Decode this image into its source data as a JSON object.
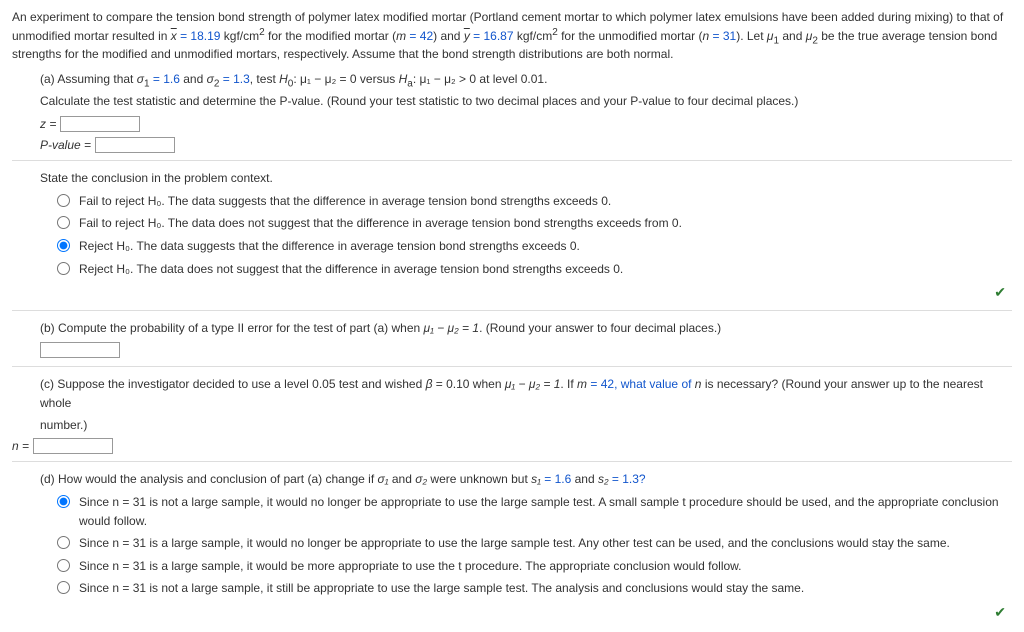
{
  "intro": {
    "line1a": "An experiment to compare the tension bond strength of polymer latex modified mortar (Portland cement mortar to which polymer latex emulsions have been added during mixing) to that of",
    "line2a": "unmodified mortar resulted in ",
    "xbar_lhs": "x",
    "xbar_val": " = 18.19",
    "units1": " kgf/cm",
    "sq": "2",
    "for_mod": " for the modified mortar (",
    "m_eq": "m",
    "m_val": " = 42",
    "and_ybar": ") and ",
    "ybar_lhs": "y",
    "ybar_val": " = 16.87",
    "for_unmod": " for the unmodified mortar (",
    "n_eq": "n",
    "n_val": " = 31",
    "let": "). Let ",
    "mu1": "μ",
    "one": "1",
    "and": " and ",
    "mu2": "μ",
    "two": "2",
    "tail": " be the true average tension bond",
    "line3": "strengths for the modified and unmodified mortars, respectively. Assume that the bond strength distributions are both normal."
  },
  "a": {
    "lead": "(a) Assuming that ",
    "sig1": "σ",
    "sig1v": " = 1.6",
    "and": " and ",
    "sig2": "σ",
    "sig2v": " = 1.3",
    "test": ", test ",
    "H0": "H",
    "H0s": "0",
    "h0body": ": μ₁ − μ₂ = 0 versus ",
    "Ha": "H",
    "Has": "a",
    "habody": ": μ₁ − μ₂ > 0 at level 0.01.",
    "calc": "Calculate the test statistic and determine the P-value. (Round your test statistic to two decimal places and your P-value to four decimal places.)",
    "z_lbl": "z =",
    "p_lbl": "P-value ="
  },
  "conclusion": {
    "title": "State the conclusion in the problem context.",
    "opts": [
      "Fail to reject H₀. The data suggests that the difference in average tension bond strengths exceeds 0.",
      "Fail to reject H₀. The data does not suggest that the difference in average tension bond strengths exceeds from 0.",
      "Reject H₀. The data suggests that the difference in average tension bond strengths exceeds 0.",
      "Reject H₀. The data does not suggest that the difference in average tension bond strengths exceeds 0."
    ],
    "selected": 2
  },
  "b": {
    "text_a": "(b) Compute the probability of a type II error for the test of part (a) when ",
    "text_b": "μ₁ − μ₂ = 1",
    "text_c": ". (Round your answer to four decimal places.)"
  },
  "c": {
    "text_a": "(c) Suppose the investigator decided to use a level 0.05 test and wished ",
    "beta": "β",
    "text_b": " = 0.10 when ",
    "text_c": "μ₁ − μ₂ = 1",
    "text_d": ". If ",
    "m": "m",
    "text_e": " = 42, what value of ",
    "n": "n",
    "text_f": " is necessary? (Round your answer up to the nearest whole",
    "text_g": "number.)",
    "n_lbl": "n ="
  },
  "d": {
    "text_a": "(d) How would the analysis and conclusion of part (a) change if ",
    "s1": "σ₁",
    "and": " and ",
    "s2": "σ₂",
    "text_b": " were unknown but ",
    "ss1": "s₁",
    "ss1v": " = 1.6",
    "and2": " and ",
    "ss2": "s₂",
    "ss2v": " = 1.3?",
    "opts": [
      "Since n = 31 is not a large sample, it would no longer be appropriate to use the large sample test. A small sample t procedure should be used, and the appropriate conclusion would follow.",
      "Since n = 31 is a large sample, it would no longer be appropriate to use the large sample test. Any other test can be used, and the conclusions would stay the same.",
      "Since n = 31 is a large sample, it would be more appropriate to use the t procedure. The appropriate conclusion would follow.",
      "Since n = 31 is not a large sample, it still be appropriate to use the large sample test. The analysis and conclusions would stay the same."
    ],
    "selected": 0
  },
  "checkmark": "✔"
}
